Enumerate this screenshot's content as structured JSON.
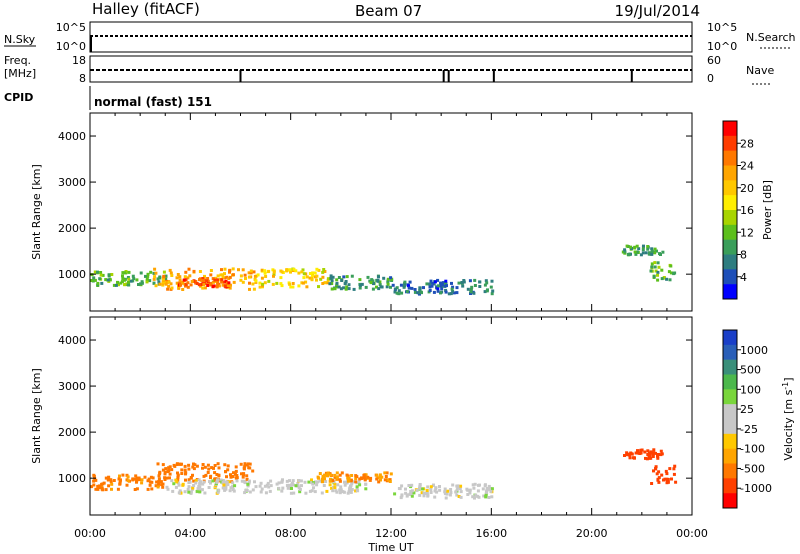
{
  "header": {
    "station": "Halley (fitACF)",
    "beam": "Beam 07",
    "date": "19/Jul/2014"
  },
  "sky_panel": {
    "left_label": "N.Sky",
    "right_label": "N.Search",
    "ticks": [
      "10^5",
      "10^0"
    ],
    "right_ticks": [
      "10^5",
      "10^0"
    ]
  },
  "freq_panel": {
    "left_label_1": "Freq.",
    "left_label_2": "[MHz]",
    "left_ticks": [
      "18",
      "8"
    ],
    "right_label": "Nave",
    "right_ticks": [
      "60",
      "0"
    ]
  },
  "cpid": {
    "label": "CPID",
    "text": "normal (fast) 151"
  },
  "power_colorbar": {
    "label": "Power [dB]",
    "ticks": [
      "28",
      "24",
      "20",
      "16",
      "12",
      "8",
      "4"
    ],
    "colors": [
      "#ff0000",
      "#ff3c00",
      "#ff7800",
      "#ffa500",
      "#ffc800",
      "#ffee00",
      "#a8d400",
      "#5cbf1c",
      "#3a9e5a",
      "#2e7d80",
      "#1e4fb8",
      "#0000ff"
    ]
  },
  "velocity_colorbar": {
    "label": "Velocity [m s",
    "label_sup": "-1",
    "label_end": "]",
    "ticks": [
      "1000",
      "500",
      "100",
      "25",
      "-25",
      "-100",
      "-500",
      "-1000"
    ],
    "colors": [
      "#1a3fc8",
      "#2a5fb8",
      "#3a8f7a",
      "#4cb84c",
      "#7ad63c",
      "#c8c8c8",
      "#c8c8c8",
      "#ffc800",
      "#ffa500",
      "#ff7800",
      "#ff4000",
      "#ff0000"
    ]
  },
  "chart_data": [
    {
      "type": "heatmap",
      "panel": "power",
      "ylabel": "Slant Range [km]",
      "yticks": [
        1000,
        2000,
        3000,
        4000
      ],
      "ylim": [
        200,
        4500
      ],
      "xlim": [
        0,
        24
      ],
      "xticks_hours": [
        0,
        4,
        8,
        12,
        16,
        20,
        24
      ],
      "regions": [
        {
          "t0": 0.0,
          "t1": 3.0,
          "r0": 780,
          "r1": 1100,
          "value": 10
        },
        {
          "t0": 2.5,
          "t1": 6.5,
          "r0": 700,
          "r1": 1150,
          "value": 22
        },
        {
          "t0": 3.5,
          "t1": 5.5,
          "r0": 750,
          "r1": 950,
          "value": 26
        },
        {
          "t0": 6.5,
          "t1": 9.5,
          "r0": 750,
          "r1": 1150,
          "value": 18
        },
        {
          "t0": 9.5,
          "t1": 12.0,
          "r0": 700,
          "r1": 1000,
          "value": 8
        },
        {
          "t0": 12.0,
          "t1": 16.0,
          "r0": 600,
          "r1": 900,
          "value": 5
        },
        {
          "t0": 21.2,
          "t1": 22.8,
          "r0": 1450,
          "r1": 1650,
          "value": 8
        },
        {
          "t0": 22.3,
          "t1": 23.3,
          "r0": 900,
          "r1": 1300,
          "value": 10
        }
      ]
    },
    {
      "type": "heatmap",
      "panel": "velocity",
      "ylabel": "Slant Range [km]",
      "xlabel": "Time UT",
      "yticks": [
        1000,
        2000,
        3000,
        4000
      ],
      "ylim": [
        200,
        4500
      ],
      "xlim": [
        0,
        24
      ],
      "xticks": [
        "00:00",
        "04:00",
        "08:00",
        "12:00",
        "16:00",
        "20:00",
        "00:00"
      ],
      "regions": [
        {
          "t0": 0.0,
          "t1": 3.0,
          "r0": 780,
          "r1": 1100,
          "value": -120
        },
        {
          "t0": 2.5,
          "t1": 6.5,
          "r0": 950,
          "r1": 1350,
          "value": -150
        },
        {
          "t0": 3.0,
          "t1": 11.0,
          "r0": 700,
          "r1": 1000,
          "value": 0
        },
        {
          "t0": 9.0,
          "t1": 12.0,
          "r0": 950,
          "r1": 1150,
          "value": -100
        },
        {
          "t0": 12.0,
          "t1": 16.0,
          "r0": 600,
          "r1": 900,
          "value": 0
        },
        {
          "t0": 21.2,
          "t1": 22.8,
          "r0": 1450,
          "r1": 1650,
          "value": -300
        },
        {
          "t0": 22.3,
          "t1": 23.3,
          "r0": 900,
          "r1": 1300,
          "value": -400
        }
      ]
    }
  ]
}
